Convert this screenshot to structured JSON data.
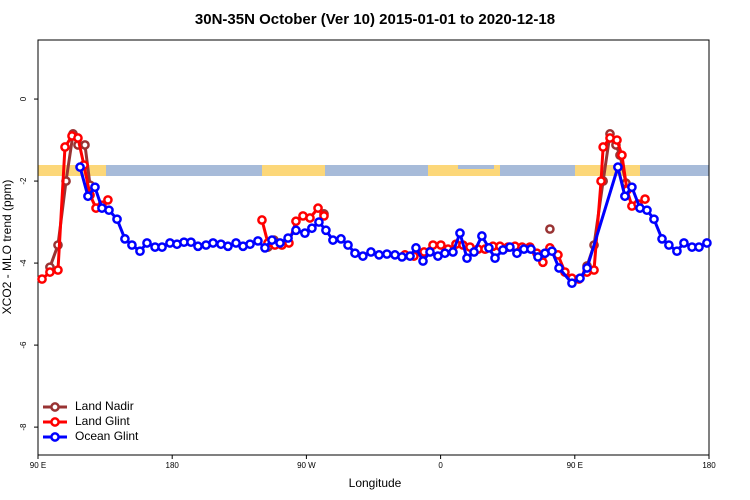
{
  "chart_data": {
    "type": "line",
    "title": "30N-35N October (Ver 10)   2015-01-01 to 2020-12-18",
    "x_label": "Longitude",
    "y_label": "XCO2 - MLO trend (ppm)",
    "xlim": [
      90,
      540
    ],
    "ylim": [
      -8.68,
      1.44
    ],
    "xticks": [
      {
        "value": 90,
        "label": "90 E"
      },
      {
        "value": 180,
        "label": "180"
      },
      {
        "value": 270,
        "label": "90 W"
      },
      {
        "value": 360,
        "label": "0"
      },
      {
        "value": 450,
        "label": "90 E"
      },
      {
        "value": 540,
        "label": "180"
      }
    ],
    "yticks": [
      0,
      -2,
      -4,
      -6,
      -8
    ],
    "legend": "lower left",
    "series": [
      {
        "name": "Land Nadir",
        "color": "#993333",
        "x": [
          98.0,
          103.4,
          108.8,
          113.5,
          116.8,
          121.5,
          124.9,
          null,
          244.2,
          248.3,
          null,
          281.8,
          null,
          433.3,
          null,
          458.2,
          462.9,
          469.0,
          473.6,
          477.6,
          480.3,
          484.3
        ],
        "values": [
          -4.1,
          -3.56,
          -2.0,
          -0.85,
          -1.12,
          -1.12,
          -2.1,
          null,
          -3.61,
          -3.44,
          null,
          -2.8,
          null,
          -3.17,
          null,
          -4.07,
          -3.56,
          -2.0,
          -0.85,
          -1.12,
          -1.37,
          -2.05
        ]
      },
      {
        "name": "Land Glint",
        "color": "#ff0000",
        "x": [
          92.7,
          98.0,
          103.4,
          108.1,
          112.8,
          116.8,
          120.8,
          124.9,
          128.9,
          132.9,
          136.9,
          null,
          240.2,
          244.2,
          248.9,
          253.6,
          258.3,
          263.0,
          267.7,
          272.4,
          277.8,
          281.8,
          null,
          336.1,
          342.1,
          348.9,
          354.9,
          360.2,
          365.0,
          370.3,
          375.0,
          379.7,
          385.1,
          389.8,
          395.1,
          399.8,
          405.2,
          409.9,
          414.6,
          419.9,
          424.6,
          428.6,
          433.3,
          438.7,
          443.4,
          448.1,
          452.8,
          458.2,
          462.9,
          467.6,
          469.0,
          473.6,
          478.3,
          481.6,
          485.0,
          488.3,
          492.4,
          497.1
        ],
        "values": [
          -4.39,
          -4.22,
          -4.17,
          -1.17,
          -0.9,
          -0.95,
          -1.61,
          -2.34,
          -2.66,
          -2.59,
          -2.46,
          null,
          -2.95,
          -3.51,
          -3.56,
          -3.56,
          -3.51,
          -2.98,
          -2.85,
          -2.9,
          -2.66,
          -2.85,
          null,
          -3.8,
          -3.83,
          -3.73,
          -3.56,
          -3.56,
          -3.66,
          -3.54,
          -3.56,
          -3.61,
          -3.66,
          -3.66,
          -3.59,
          -3.59,
          -3.61,
          -3.59,
          -3.61,
          -3.61,
          -3.76,
          -3.98,
          -3.63,
          -3.8,
          -4.22,
          -4.37,
          -4.39,
          -4.22,
          -4.17,
          -2.0,
          -1.17,
          -0.95,
          -1.0,
          -1.37,
          -2.22,
          -2.61,
          -2.56,
          -2.44
        ]
      },
      {
        "name": "Ocean Glint",
        "color": "#0000ff",
        "x": [
          118.2,
          123.5,
          128.2,
          132.9,
          137.6,
          143.0,
          148.3,
          153.0,
          158.4,
          163.1,
          168.5,
          173.2,
          178.5,
          183.2,
          187.9,
          192.6,
          197.3,
          202.7,
          207.4,
          212.7,
          217.4,
          222.8,
          227.5,
          232.2,
          237.5,
          242.2,
          246.9,
          252.3,
          257.7,
          263.0,
          269.0,
          273.7,
          278.4,
          283.1,
          287.8,
          293.2,
          297.9,
          302.6,
          307.9,
          313.3,
          318.7,
          324.0,
          329.4,
          334.1,
          339.5,
          343.5,
          348.2,
          352.9,
          358.2,
          362.9,
          368.3,
          373.0,
          377.7,
          382.4,
          387.7,
          392.4,
          396.5,
          401.8,
          406.5,
          411.2,
          415.9,
          420.6,
          425.3,
          430.0,
          434.7,
          439.4,
          448.1,
          453.5,
          458.2,
          478.9,
          483.6,
          488.3,
          493.7,
          498.4,
          503.1,
          508.5,
          513.1,
          518.5,
          523.2,
          528.6,
          533.3,
          538.6
        ],
        "values": [
          -1.66,
          -2.37,
          -2.15,
          -2.66,
          -2.71,
          -2.93,
          -3.41,
          -3.56,
          -3.71,
          -3.51,
          -3.61,
          -3.61,
          -3.51,
          -3.54,
          -3.49,
          -3.49,
          -3.59,
          -3.56,
          -3.51,
          -3.54,
          -3.59,
          -3.51,
          -3.59,
          -3.54,
          -3.46,
          -3.63,
          -3.44,
          -3.51,
          -3.39,
          -3.2,
          -3.27,
          -3.15,
          -3.0,
          -3.2,
          -3.44,
          -3.41,
          -3.56,
          -3.76,
          -3.83,
          -3.73,
          -3.8,
          -3.78,
          -3.8,
          -3.85,
          -3.83,
          -3.63,
          -3.95,
          -3.73,
          -3.83,
          -3.76,
          -3.73,
          -3.27,
          -3.88,
          -3.73,
          -3.34,
          -3.63,
          -3.88,
          -3.68,
          -3.61,
          -3.76,
          -3.66,
          -3.66,
          -3.85,
          -3.76,
          -3.71,
          -4.12,
          -4.49,
          -4.37,
          -4.12,
          -1.66,
          -2.37,
          -2.15,
          -2.66,
          -2.71,
          -2.93,
          -3.41,
          -3.56,
          -3.71,
          -3.51,
          -3.61,
          -3.61,
          -3.51
        ]
      }
    ]
  }
}
